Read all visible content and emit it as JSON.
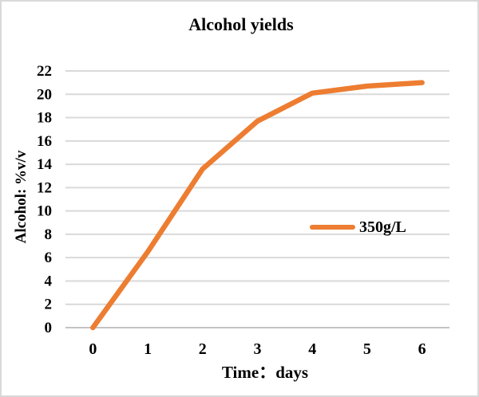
{
  "chart_data": {
    "type": "line",
    "title": "Alcohol yields",
    "xlabel": "Time：days",
    "ylabel": "Alcohol: %v/v",
    "x": [
      0,
      1,
      2,
      3,
      4,
      5,
      6
    ],
    "xticks": [
      "0",
      "1",
      "2",
      "3",
      "4",
      "5",
      "6"
    ],
    "series": [
      {
        "name": "350g/L",
        "color": "#ED7D31",
        "values": [
          0,
          6.5,
          13.6,
          17.7,
          20.1,
          20.7,
          21
        ]
      }
    ],
    "ylim": [
      0,
      22
    ],
    "ytick_step": 2,
    "grid": "horizontal",
    "legend_position": "inside-right-middle",
    "colors": {
      "line": "#ED7D31",
      "gridline": "#D9D9D9",
      "axis_line": "#C3C3C3",
      "text": "#000000",
      "border": "#D9D9D9",
      "background": "#FFFFFF"
    }
  }
}
